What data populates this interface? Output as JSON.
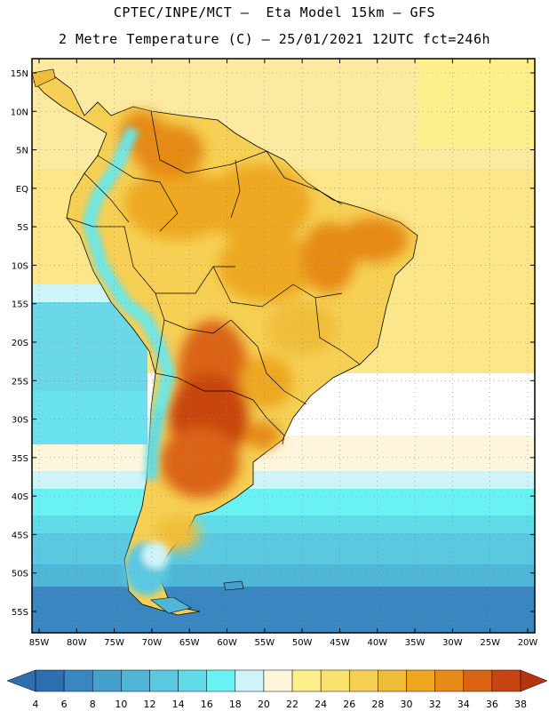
{
  "header": {
    "line1": "CPTEC/INPE/MCT –  Eta Model 15km – GFS",
    "line2": "2 Metre Temperature (C) – 25/01/2021 12UTC fct=246h"
  },
  "map": {
    "lat_labels": [
      "15N",
      "10N",
      "5N",
      "EQ",
      "5S",
      "10S",
      "15S",
      "20S",
      "25S",
      "30S",
      "35S",
      "40S",
      "45S",
      "50S",
      "55S"
    ],
    "lon_labels": [
      "85W",
      "80W",
      "75W",
      "70W",
      "65W",
      "60W",
      "55W",
      "50W",
      "45W",
      "40W",
      "35W",
      "30W",
      "25W",
      "20W"
    ],
    "lat_values": [
      15,
      10,
      5,
      0,
      -5,
      -10,
      -15,
      -20,
      -25,
      -30,
      -35,
      -40,
      -45,
      -50,
      -55
    ],
    "lon_values": [
      -85,
      -80,
      -75,
      -70,
      -65,
      -60,
      -55,
      -50,
      -45,
      -40,
      -35,
      -30,
      -25,
      -20
    ]
  },
  "colorbar": {
    "unit": "C",
    "ticks": [
      "4",
      "6",
      "8",
      "10",
      "12",
      "14",
      "16",
      "18",
      "20",
      "22",
      "24",
      "26",
      "28",
      "30",
      "32",
      "34",
      "36",
      "38"
    ],
    "colors": [
      "#2e6fb0",
      "#3a86c0",
      "#46a0cc",
      "#4fb6d8",
      "#5ac8e0",
      "#5fdce8",
      "#6af2f2",
      "#cef4fa",
      "#fdf6dc",
      "#fdf08c",
      "#fbe26c",
      "#f6d054",
      "#f0bd3a",
      "#eea820",
      "#e68a18",
      "#da6412",
      "#c84410",
      "#b53410"
    ]
  }
}
